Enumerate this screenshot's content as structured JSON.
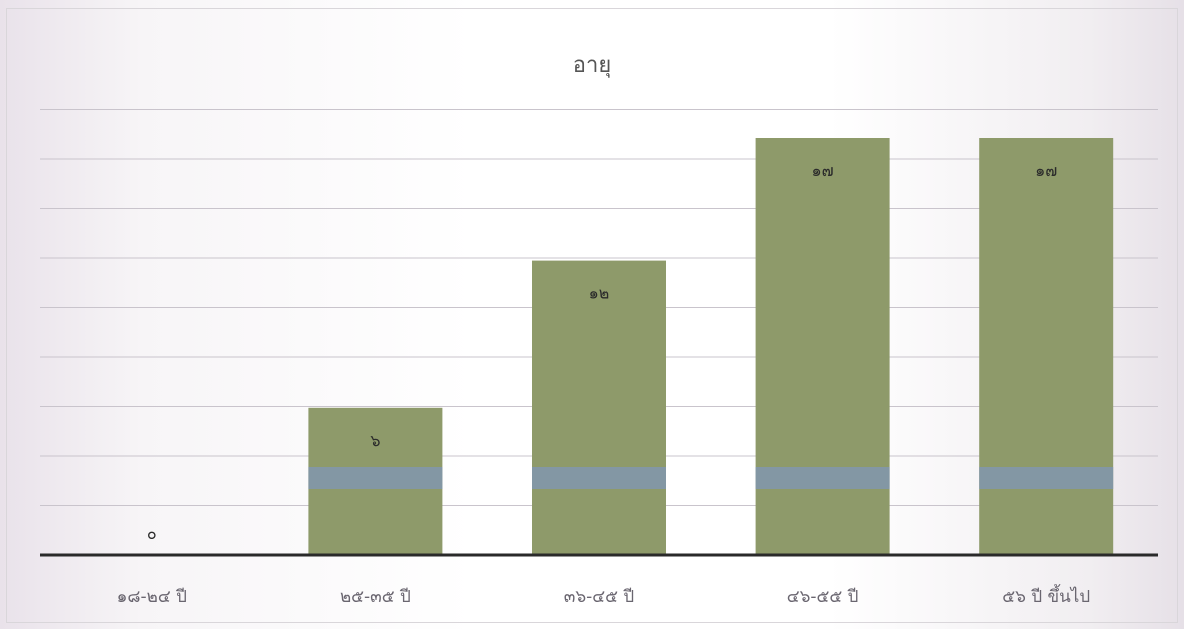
{
  "chart_data": {
    "type": "bar",
    "title": "อายุ",
    "categories": [
      "๑๘-๒๔ ปี",
      "๒๕-๓๕ ปี",
      "๓๖-๔๕ ปี",
      "๔๖-๕๕ ปี",
      "๕๖ ปี ขึ้นไป"
    ],
    "values": [
      0,
      6,
      12,
      17,
      17
    ],
    "data_labels": [
      "๐",
      "๖",
      "๑๒",
      "๑๗",
      "๑๗"
    ],
    "ylim": [
      0,
      17
    ],
    "grid": true,
    "xlabel": "",
    "ylabel": "",
    "colors": {
      "bar": "#8e9a6a",
      "bar_band": "#7f95b8",
      "grid": "#c9c4cc",
      "axis": "#2a2a2a"
    }
  }
}
